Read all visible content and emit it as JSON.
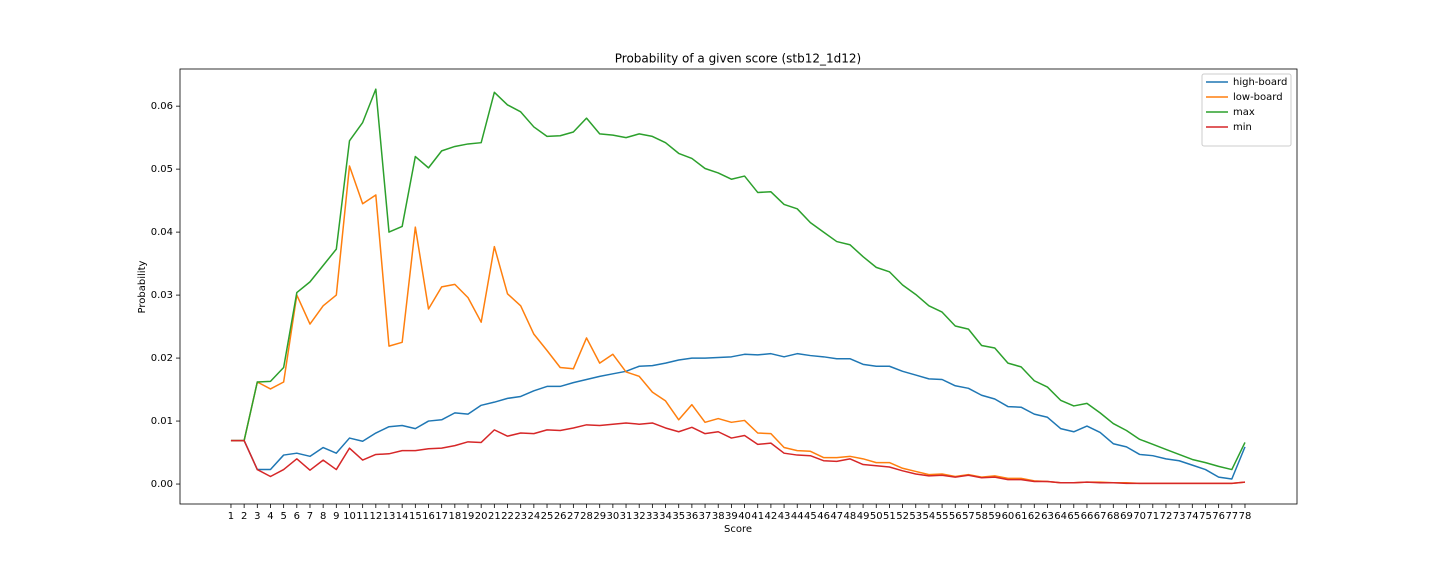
{
  "chart_data": {
    "type": "line",
    "title": "Probability of a given score (stb12_1d12)",
    "x_label": "Score",
    "y_label": "Probability",
    "x": [
      1,
      2,
      3,
      4,
      5,
      6,
      7,
      8,
      9,
      10,
      11,
      12,
      13,
      14,
      15,
      16,
      17,
      18,
      19,
      20,
      21,
      22,
      23,
      24,
      25,
      26,
      27,
      28,
      29,
      30,
      31,
      32,
      33,
      34,
      35,
      36,
      37,
      38,
      39,
      40,
      41,
      42,
      43,
      44,
      45,
      46,
      47,
      48,
      49,
      50,
      51,
      52,
      53,
      54,
      55,
      56,
      57,
      58,
      59,
      60,
      61,
      62,
      63,
      64,
      65,
      66,
      67,
      68,
      69,
      70,
      71,
      72,
      73,
      74,
      75,
      76,
      77,
      78
    ],
    "xticks": [
      1,
      2,
      3,
      4,
      5,
      6,
      7,
      8,
      9,
      10,
      11,
      12,
      13,
      14,
      15,
      16,
      17,
      18,
      19,
      20,
      21,
      22,
      23,
      24,
      25,
      26,
      27,
      28,
      29,
      30,
      31,
      32,
      33,
      34,
      35,
      36,
      37,
      38,
      39,
      40,
      41,
      42,
      43,
      44,
      45,
      46,
      47,
      48,
      49,
      50,
      51,
      52,
      53,
      54,
      55,
      56,
      57,
      58,
      59,
      60,
      61,
      62,
      63,
      64,
      65,
      66,
      67,
      68,
      69,
      70,
      71,
      72,
      73,
      74,
      75,
      76,
      77,
      78
    ],
    "xlim": [
      -2.87,
      81.95
    ],
    "ylim": [
      -0.00317,
      0.0659
    ],
    "yticks": [
      {
        "value": 0,
        "label": "0.00"
      },
      0.01,
      0.02,
      0.03,
      0.04,
      0.05,
      0.06
    ],
    "legend": "upper right",
    "series": [
      {
        "name": "high-board",
        "color": "#1f77b4",
        "values": [
          0.0069,
          0.0069,
          0.0023,
          0.0023,
          0.0046,
          0.0049,
          0.0044,
          0.0058,
          0.0049,
          0.0073,
          0.0068,
          0.0081,
          0.0091,
          0.0093,
          0.0088,
          0.01,
          0.0102,
          0.0113,
          0.0111,
          0.0125,
          0.013,
          0.0136,
          0.0139,
          0.0148,
          0.0155,
          0.0155,
          0.0161,
          0.0166,
          0.0171,
          0.0175,
          0.0179,
          0.0187,
          0.0188,
          0.0192,
          0.0197,
          0.02,
          0.02,
          0.0201,
          0.0202,
          0.0206,
          0.0205,
          0.0207,
          0.0202,
          0.0207,
          0.0204,
          0.0202,
          0.0199,
          0.0199,
          0.019,
          0.0187,
          0.0187,
          0.0179,
          0.0173,
          0.0167,
          0.0166,
          0.0156,
          0.0152,
          0.0141,
          0.0135,
          0.0123,
          0.0122,
          0.0111,
          0.0106,
          0.0088,
          0.0083,
          0.0092,
          0.0082,
          0.0064,
          0.0059,
          0.0047,
          0.0045,
          0.004,
          0.0037,
          0.003,
          0.0023,
          0.0011,
          0.0008,
          0.0059
        ]
      },
      {
        "name": "low-board",
        "color": "#ff7f0e",
        "values": [
          0.0069,
          0.0069,
          0.0162,
          0.0151,
          0.0162,
          0.03,
          0.0254,
          0.0283,
          0.03,
          0.0505,
          0.0445,
          0.0459,
          0.0219,
          0.0225,
          0.0408,
          0.0278,
          0.0313,
          0.0317,
          0.0296,
          0.0257,
          0.0377,
          0.0302,
          0.0283,
          0.0238,
          0.0212,
          0.0185,
          0.0183,
          0.0232,
          0.0192,
          0.0206,
          0.0178,
          0.0171,
          0.0146,
          0.0132,
          0.0102,
          0.0126,
          0.0098,
          0.0104,
          0.0098,
          0.0101,
          0.0081,
          0.008,
          0.0058,
          0.0053,
          0.0052,
          0.0042,
          0.0042,
          0.0044,
          0.004,
          0.0034,
          0.0034,
          0.0025,
          0.002,
          0.0015,
          0.0016,
          0.0012,
          0.0015,
          0.0011,
          0.0013,
          0.0009,
          0.0009,
          0.0005,
          0.0004,
          0.0002,
          0.0002,
          0.0003,
          0.0003,
          0.0002,
          0.0002,
          0.0001,
          0.0001,
          0.0001,
          0.0001,
          0.0001,
          0.0001,
          0.0001,
          0.0001,
          0.0003
        ]
      },
      {
        "name": "max",
        "color": "#2ca02c",
        "values": [
          0.0069,
          0.0069,
          0.0162,
          0.0163,
          0.0185,
          0.0304,
          0.0321,
          0.0347,
          0.0373,
          0.0545,
          0.0574,
          0.0627,
          0.04,
          0.0409,
          0.052,
          0.0502,
          0.0529,
          0.0536,
          0.054,
          0.0542,
          0.0622,
          0.0602,
          0.0591,
          0.0567,
          0.0552,
          0.0553,
          0.0559,
          0.0581,
          0.0556,
          0.0554,
          0.055,
          0.0556,
          0.0552,
          0.0542,
          0.0525,
          0.0517,
          0.0501,
          0.0494,
          0.0484,
          0.0489,
          0.0463,
          0.0464,
          0.0444,
          0.0437,
          0.0415,
          0.04,
          0.0385,
          0.038,
          0.0361,
          0.0344,
          0.0337,
          0.0316,
          0.0301,
          0.0283,
          0.0273,
          0.0251,
          0.0246,
          0.022,
          0.0216,
          0.0192,
          0.0186,
          0.0164,
          0.0154,
          0.0133,
          0.0124,
          0.0128,
          0.0113,
          0.0096,
          0.0085,
          0.0071,
          0.0063,
          0.0055,
          0.0047,
          0.0039,
          0.0034,
          0.0028,
          0.0023,
          0.0066
        ]
      },
      {
        "name": "min",
        "color": "#d62728",
        "values": [
          0.0069,
          0.0069,
          0.0023,
          0.0012,
          0.0023,
          0.004,
          0.0022,
          0.0038,
          0.0023,
          0.0057,
          0.0038,
          0.0047,
          0.0048,
          0.0053,
          0.0053,
          0.0056,
          0.0057,
          0.0061,
          0.0067,
          0.0066,
          0.0086,
          0.0076,
          0.0081,
          0.008,
          0.0086,
          0.0085,
          0.0089,
          0.0094,
          0.0093,
          0.0095,
          0.0097,
          0.0095,
          0.0097,
          0.0089,
          0.0083,
          0.009,
          0.008,
          0.0083,
          0.0073,
          0.0077,
          0.0063,
          0.0065,
          0.0049,
          0.0046,
          0.0045,
          0.0037,
          0.0036,
          0.004,
          0.0031,
          0.0029,
          0.0027,
          0.0021,
          0.0016,
          0.0013,
          0.0014,
          0.0011,
          0.0014,
          0.001,
          0.0011,
          0.0007,
          0.0007,
          0.0004,
          0.0004,
          0.0002,
          0.0002,
          0.0003,
          0.0002,
          0.0002,
          0.0001,
          0.0001,
          0.0001,
          0.0001,
          0.0001,
          0.0001,
          0.0001,
          0.0001,
          0.0001,
          0.0003
        ]
      }
    ]
  }
}
